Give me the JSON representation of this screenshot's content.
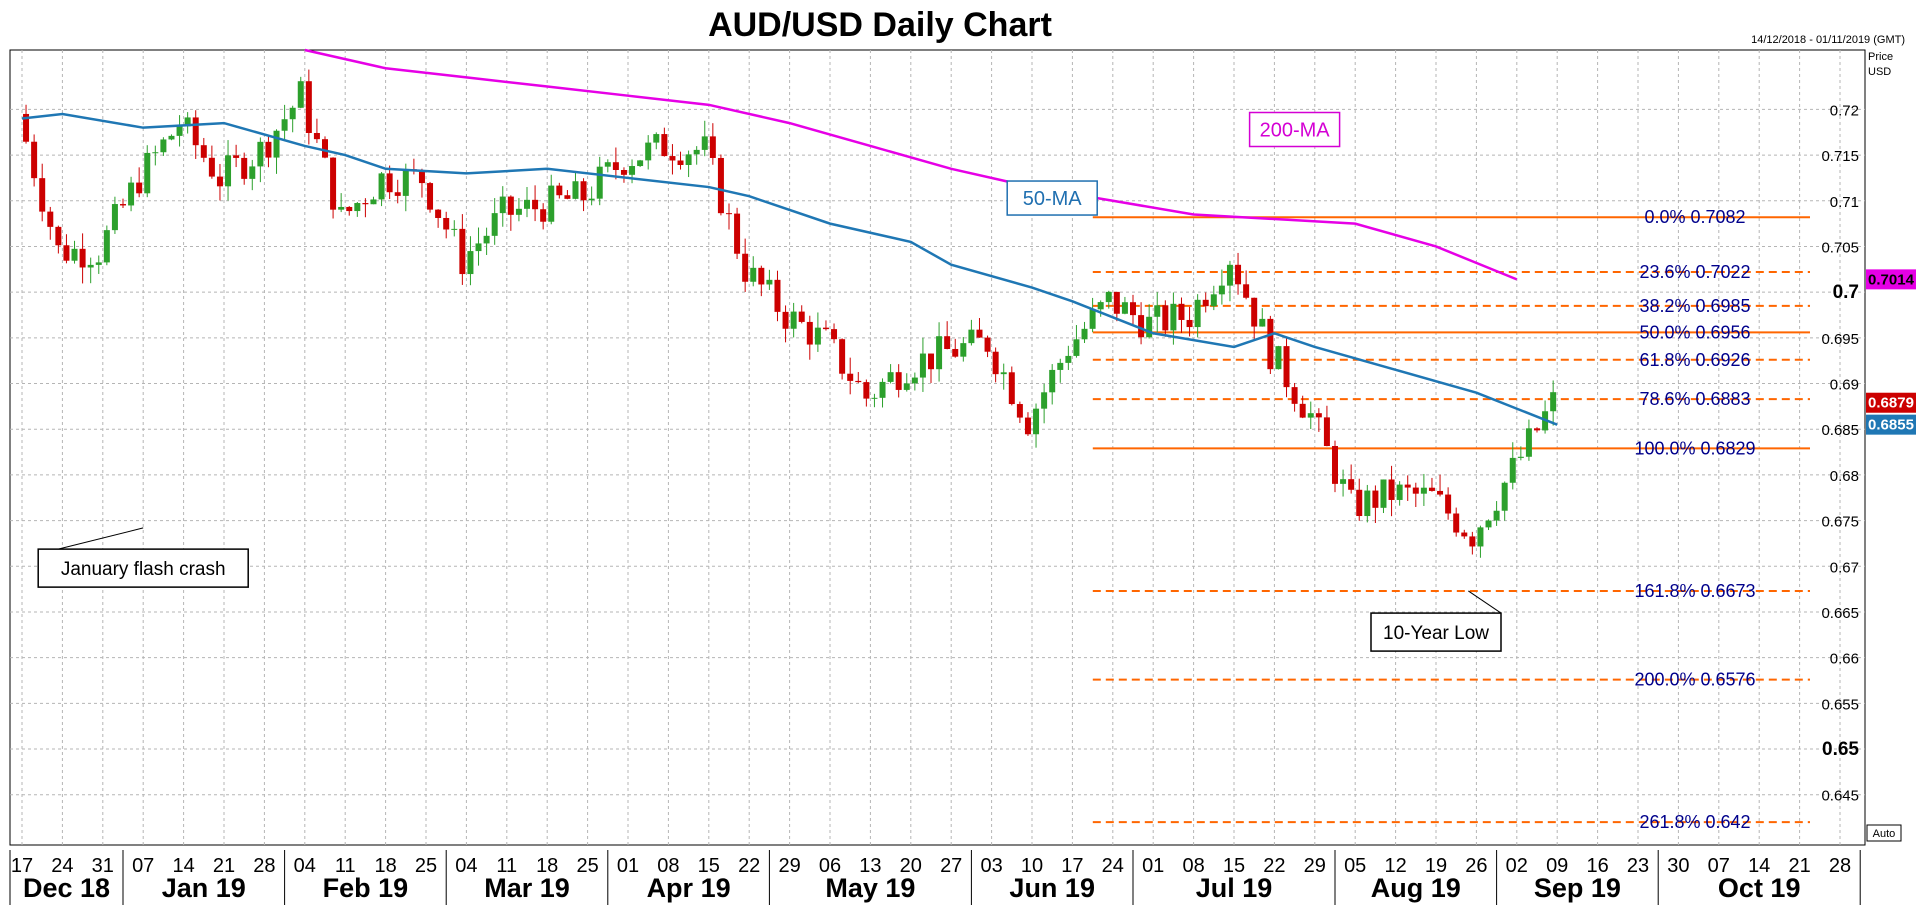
{
  "chart_data": {
    "type": "candlestick",
    "title": "AUD/USD Daily Chart",
    "date_range": "14/12/2018 - 01/11/2019 (GMT)",
    "y_axis_title": [
      "Price",
      "USD"
    ],
    "ylim": [
      0.6395,
      0.7265
    ],
    "y_ticks": [
      {
        "value": 0.72,
        "label": "0.72",
        "bold": false
      },
      {
        "value": 0.715,
        "label": "0.715",
        "bold": false
      },
      {
        "value": 0.71,
        "label": "0.71",
        "bold": false
      },
      {
        "value": 0.705,
        "label": "0.705",
        "bold": false
      },
      {
        "value": 0.7,
        "label": "0.7",
        "bold": true
      },
      {
        "value": 0.695,
        "label": "0.695",
        "bold": false
      },
      {
        "value": 0.69,
        "label": "0.69",
        "bold": false
      },
      {
        "value": 0.685,
        "label": "0.685",
        "bold": false
      },
      {
        "value": 0.68,
        "label": "0.68",
        "bold": false
      },
      {
        "value": 0.675,
        "label": "0.675",
        "bold": false
      },
      {
        "value": 0.67,
        "label": "0.67",
        "bold": false
      },
      {
        "value": 0.665,
        "label": "0.665",
        "bold": false
      },
      {
        "value": 0.66,
        "label": "0.66",
        "bold": false
      },
      {
        "value": 0.655,
        "label": "0.655",
        "bold": false
      },
      {
        "value": 0.65,
        "label": "0.65",
        "bold": true
      },
      {
        "value": 0.645,
        "label": "0.645",
        "bold": false
      }
    ],
    "x_days": [
      "17",
      "24",
      "31",
      "07",
      "14",
      "21",
      "28",
      "04",
      "11",
      "18",
      "25",
      "04",
      "11",
      "18",
      "25",
      "01",
      "08",
      "15",
      "22",
      "29",
      "06",
      "13",
      "20",
      "27",
      "03",
      "10",
      "17",
      "24",
      "01",
      "08",
      "15",
      "22",
      "29",
      "05",
      "12",
      "19",
      "26",
      "02",
      "09",
      "16",
      "23",
      "30",
      "07",
      "14",
      "21",
      "28"
    ],
    "months": [
      {
        "label": "Dec 18",
        "start_week": 0
      },
      {
        "label": "Jan 19",
        "start_week": 3
      },
      {
        "label": "Feb 19",
        "start_week": 7
      },
      {
        "label": "Mar 19",
        "start_week": 11
      },
      {
        "label": "Apr 19",
        "start_week": 15
      },
      {
        "label": "May 19",
        "start_week": 19
      },
      {
        "label": "Jun 19",
        "start_week": 24
      },
      {
        "label": "Jul 19",
        "start_week": 28
      },
      {
        "label": "Aug 19",
        "start_week": 33
      },
      {
        "label": "Sep 19",
        "start_week": 37
      },
      {
        "label": "Oct 19",
        "start_week": 41
      },
      {
        "label": "",
        "start_week": 46
      }
    ],
    "series_close": [
      {
        "week": 0,
        "close": 0.7195
      },
      {
        "week": 1,
        "close": 0.7045
      },
      {
        "week": 2,
        "close": 0.7045
      },
      {
        "week": 3,
        "close": 0.7125
      },
      {
        "week": 4,
        "close": 0.7185
      },
      {
        "week": 5,
        "close": 0.7125
      },
      {
        "week": 6,
        "close": 0.7155
      },
      {
        "week": 7,
        "close": 0.7215
      },
      {
        "week": 8,
        "close": 0.708
      },
      {
        "week": 9,
        "close": 0.7125
      },
      {
        "week": 10,
        "close": 0.7125
      },
      {
        "week": 11,
        "close": 0.7035
      },
      {
        "week": 12,
        "close": 0.7085
      },
      {
        "week": 13,
        "close": 0.7095
      },
      {
        "week": 14,
        "close": 0.7105
      },
      {
        "week": 15,
        "close": 0.7145
      },
      {
        "week": 16,
        "close": 0.716
      },
      {
        "week": 17,
        "close": 0.7155
      },
      {
        "week": 18,
        "close": 0.7025
      },
      {
        "week": 19,
        "close": 0.6975
      },
      {
        "week": 20,
        "close": 0.6945
      },
      {
        "week": 21,
        "close": 0.6885
      },
      {
        "week": 22,
        "close": 0.692
      },
      {
        "week": 23,
        "close": 0.6935
      },
      {
        "week": 24,
        "close": 0.6945
      },
      {
        "week": 25,
        "close": 0.686
      },
      {
        "week": 26,
        "close": 0.694
      },
      {
        "week": 27,
        "close": 0.699
      },
      {
        "week": 28,
        "close": 0.6965
      },
      {
        "week": 29,
        "close": 0.6975
      },
      {
        "week": 30,
        "close": 0.704
      },
      {
        "week": 31,
        "close": 0.6935
      },
      {
        "week": 32,
        "close": 0.6865
      },
      {
        "week": 33,
        "close": 0.6765
      },
      {
        "week": 34,
        "close": 0.678
      },
      {
        "week": 35,
        "close": 0.6775
      },
      {
        "week": 36,
        "close": 0.6735
      },
      {
        "week": 37,
        "close": 0.6805
      },
      {
        "week": 38,
        "close": 0.6879
      }
    ],
    "ma_50": [
      {
        "week": 0,
        "value": 0.719
      },
      {
        "week": 1,
        "value": 0.7195
      },
      {
        "week": 3,
        "value": 0.718
      },
      {
        "week": 5,
        "value": 0.7185
      },
      {
        "week": 7,
        "value": 0.716
      },
      {
        "week": 8,
        "value": 0.715
      },
      {
        "week": 9,
        "value": 0.7135
      },
      {
        "week": 11,
        "value": 0.713
      },
      {
        "week": 13,
        "value": 0.7135
      },
      {
        "week": 15,
        "value": 0.7125
      },
      {
        "week": 17,
        "value": 0.7115
      },
      {
        "week": 18,
        "value": 0.7105
      },
      {
        "week": 20,
        "value": 0.7075
      },
      {
        "week": 22,
        "value": 0.7055
      },
      {
        "week": 23,
        "value": 0.703
      },
      {
        "week": 25,
        "value": 0.7005
      },
      {
        "week": 26,
        "value": 0.699
      },
      {
        "week": 28,
        "value": 0.6955
      },
      {
        "week": 30,
        "value": 0.694
      },
      {
        "week": 31,
        "value": 0.6955
      },
      {
        "week": 32,
        "value": 0.694
      },
      {
        "week": 34,
        "value": 0.6915
      },
      {
        "week": 36,
        "value": 0.689
      },
      {
        "week": 38,
        "value": 0.6855
      }
    ],
    "ma_200": [
      {
        "week": 7,
        "value": 0.7265
      },
      {
        "week": 9,
        "value": 0.7245
      },
      {
        "week": 11,
        "value": 0.7235
      },
      {
        "week": 13,
        "value": 0.7225
      },
      {
        "week": 15,
        "value": 0.7215
      },
      {
        "week": 17,
        "value": 0.7205
      },
      {
        "week": 19,
        "value": 0.7185
      },
      {
        "week": 21,
        "value": 0.716
      },
      {
        "week": 23,
        "value": 0.7135
      },
      {
        "week": 25,
        "value": 0.7115
      },
      {
        "week": 27,
        "value": 0.71
      },
      {
        "week": 29,
        "value": 0.7085
      },
      {
        "week": 31,
        "value": 0.708
      },
      {
        "week": 33,
        "value": 0.7075
      },
      {
        "week": 35,
        "value": 0.705
      },
      {
        "week": 37,
        "value": 0.7014
      }
    ],
    "fib_levels": [
      {
        "label": "0.0%",
        "value": 0.7082,
        "display": "0.7082",
        "solid": true,
        "start_week": 27
      },
      {
        "label": "23.6%",
        "value": 0.7022,
        "display": "0.7022",
        "solid": false,
        "start_week": 27
      },
      {
        "label": "38.2%",
        "value": 0.6985,
        "display": "0.6985",
        "solid": false,
        "start_week": 27
      },
      {
        "label": "50.0%",
        "value": 0.6956,
        "display": "0.6956",
        "solid": true,
        "start_week": 27
      },
      {
        "label": "61.8%",
        "value": 0.6926,
        "display": "0.6926",
        "solid": false,
        "start_week": 27
      },
      {
        "label": "78.6%",
        "value": 0.6883,
        "display": "0.6883",
        "solid": false,
        "start_week": 27
      },
      {
        "label": "100.0%",
        "value": 0.6829,
        "display": "0.6829",
        "solid": true,
        "start_week": 27
      },
      {
        "label": "161.8%",
        "value": 0.6673,
        "display": "0.6673",
        "solid": false,
        "start_week": 27
      },
      {
        "label": "200.0%",
        "value": 0.6576,
        "display": "0.6576",
        "solid": false,
        "start_week": 27
      },
      {
        "label": "261.8%",
        "value": 0.642,
        "display": "0.642",
        "solid": false,
        "start_week": 27
      }
    ],
    "price_tags": [
      {
        "value": 0.7014,
        "display": "0.7014",
        "bg": "#e600e6",
        "fg": "#000000"
      },
      {
        "value": 0.6879,
        "display": "0.6879",
        "bg": "#cc0000",
        "fg": "#ffffff"
      },
      {
        "value": 0.6855,
        "display": "0.6855",
        "bg": "#1f77b4",
        "fg": "#ffffff"
      }
    ],
    "annotations": [
      {
        "text": "200-MA",
        "color": "#d400d4",
        "week": 31.5,
        "value": 0.7178
      },
      {
        "text": "50-MA",
        "color": "#1f6fb0",
        "week": 25.5,
        "value": 0.7103
      },
      {
        "text": "January flash crash",
        "color": "#000000",
        "week": 3,
        "value": 0.6698,
        "points_to_week": 3,
        "points_to_value": 0.6742
      },
      {
        "text": "10-Year Low",
        "color": "#000000",
        "week": 35,
        "value": 0.6628,
        "points_to_week": 35.8,
        "points_to_value": 0.6673
      }
    ],
    "colors": {
      "bull": "#2ca02c",
      "bear": "#cc0000",
      "ma50": "#1f77b4",
      "ma200": "#e600e6",
      "fib": "#ff6600"
    },
    "auto_button": "Auto"
  }
}
